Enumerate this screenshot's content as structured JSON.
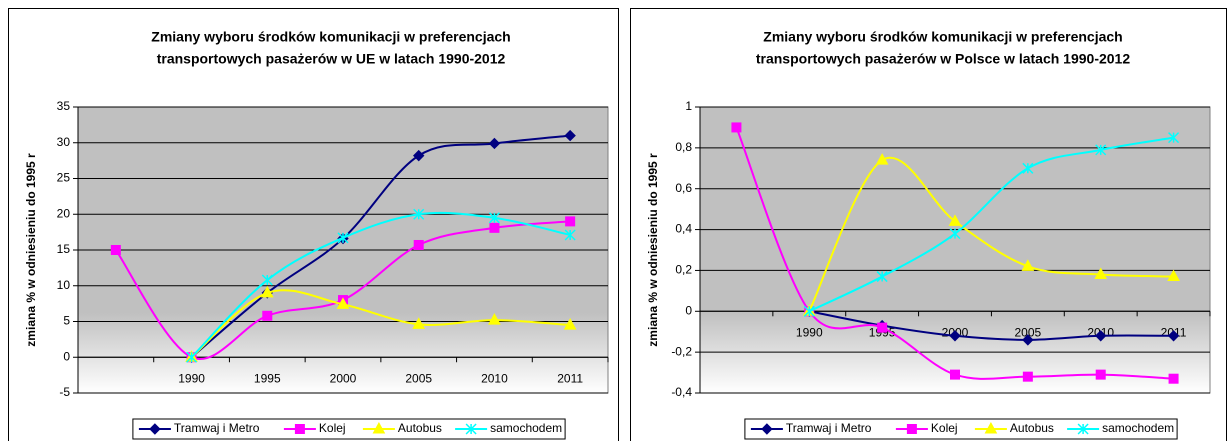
{
  "chart_data": [
    {
      "type": "line",
      "title": [
        "Zmiany wyboru środków komunikacji w preferencjach",
        "transportowych pasażerów w UE w latach 1990-2012"
      ],
      "y_label": "zmiana % w odniesieniu do 1995 r",
      "categories": [
        null,
        "1990",
        "1995",
        "2000",
        "2005",
        "2010",
        "2011"
      ],
      "series": [
        {
          "name": "Tramwaj i Metro",
          "color": "#000080",
          "marker": "diamond",
          "values": [
            null,
            0,
            9,
            16.6,
            28.2,
            29.9,
            31
          ]
        },
        {
          "name": "Kolej",
          "color": "#FF00FF",
          "marker": "square",
          "values": [
            15,
            0,
            5.8,
            8,
            15.7,
            18.1,
            19
          ]
        },
        {
          "name": "Autobus",
          "color": "#FFFF00",
          "marker": "triangle",
          "values": [
            null,
            0,
            9,
            7.4,
            4.6,
            5.2,
            4.5
          ]
        },
        {
          "name": "samochodem",
          "color": "#00FFFF",
          "marker": "star",
          "values": [
            null,
            0,
            10.8,
            16.7,
            20,
            19.5,
            17.1
          ]
        }
      ],
      "ylim": [
        -5,
        35
      ],
      "yticks": [
        -5,
        0,
        5,
        10,
        15,
        20,
        25,
        30,
        35
      ],
      "grid": true,
      "legend": "bottom"
    },
    {
      "type": "line",
      "title": [
        "Zmiany wyboru środków komunikacji w preferencjach",
        "transportowych pasażerów w Polsce w latach 1990-2012"
      ],
      "y_label": "zmiana % w odniesieniu do 1995 r",
      "categories": [
        null,
        "1990",
        "1995",
        "2000",
        "2005",
        "2010",
        "2011"
      ],
      "series": [
        {
          "name": "Tramwaj i Metro",
          "color": "#000080",
          "marker": "diamond",
          "values": [
            null,
            0,
            -0.07,
            -0.12,
            -0.14,
            -0.12,
            -0.12
          ]
        },
        {
          "name": "Kolej",
          "color": "#FF00FF",
          "marker": "square",
          "values": [
            0.9,
            0,
            -0.08,
            -0.31,
            -0.32,
            -0.31,
            -0.33
          ]
        },
        {
          "name": "Autobus",
          "color": "#FFFF00",
          "marker": "triangle",
          "values": [
            null,
            0,
            0.74,
            0.44,
            0.22,
            0.18,
            0.17
          ]
        },
        {
          "name": "samochodem",
          "color": "#00FFFF",
          "marker": "star",
          "values": [
            null,
            0,
            0.17,
            0.38,
            0.7,
            0.79,
            0.85
          ]
        }
      ],
      "ylim": [
        -0.4,
        1
      ],
      "yticks": [
        {
          "value": -0.4,
          "label": "-0,4"
        },
        {
          "value": -0.2,
          "label": "-0,2"
        },
        0,
        {
          "value": 0.2,
          "label": "0,2"
        },
        {
          "value": 0.4,
          "label": "0,4"
        },
        {
          "value": 0.6,
          "label": "0,6"
        },
        {
          "value": 0.8,
          "label": "0,8"
        },
        1
      ],
      "grid": true,
      "legend": "bottom"
    }
  ]
}
